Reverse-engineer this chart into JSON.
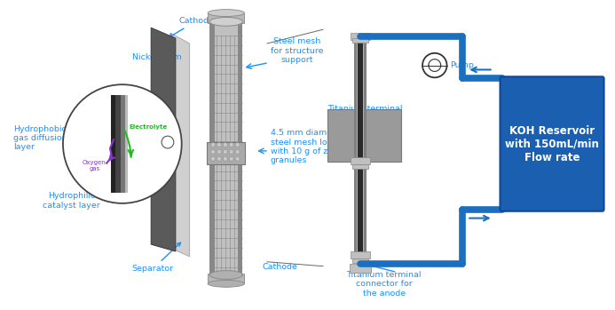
{
  "bg_color": "#ffffff",
  "pipe_color": "#1B6FBF",
  "koh_color": "#1B5FB0",
  "ann_color": "#1E90FF",
  "labels": {
    "cathode_top": "Cathode",
    "nickel_foam": "Nickel foam",
    "hydrophobic": "Hydrophobic\ngas diffusion\nlayer",
    "hydrophilic": "Hydrophilic\ncatalyst layer",
    "separator": "Separator",
    "electrolyte": "Electrolyte",
    "oxygen_gas": "Oxygen\ngas",
    "steel_mesh_top": "Steel mesh\nfor structure\nsupport",
    "zinc_granules": "4.5 mm diameter\nsteel mesh loaded\nwith 10 g of zinc\ngranules",
    "cathode_bottom": "Cathode",
    "ti_cathode": "Titanium terminal\nconnector for\nthe cathode",
    "ti_anode": "Titanium terminal\nconnector for\nthe anode",
    "pump": "Pump",
    "koh": "KOH Reservoir\nwith 150mL/min\nFlow rate"
  }
}
